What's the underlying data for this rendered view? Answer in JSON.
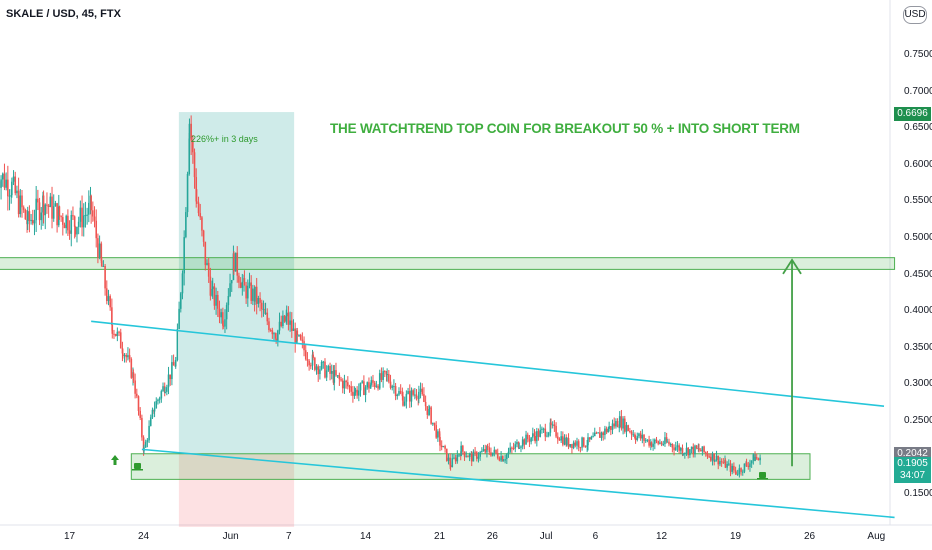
{
  "header": {
    "symbol": "SKALE / USD, 45, FTX",
    "currency_button": "USD"
  },
  "annotations": {
    "headline": "THE WATCHTREND TOP COIN FOR BREAKOUT 50 % + INTO SHORT TERM",
    "gain_note": "226%+ in 3 days"
  },
  "price_badges": [
    {
      "label": "0.6696",
      "value": 0.6696,
      "color": "#1e8f4e"
    },
    {
      "label": "0.2042",
      "value": 0.2042,
      "color": "#787b86"
    },
    {
      "label": "0.1905",
      "value": 0.1905,
      "color": "#22ab94"
    },
    {
      "label": "34:07",
      "value": 0.174,
      "color": "#22ab94"
    }
  ],
  "colors": {
    "up": "#26a69a",
    "down": "#ef5350",
    "zone": "#4caf50",
    "trendline": "#26c6da",
    "arrow": "#43a047",
    "rally_box": "#26a69a",
    "drop_box": "#f23645"
  },
  "icons": [
    "up-arrow-icon",
    "coffee-cup-icon"
  ],
  "chart_data": {
    "type": "candlestick",
    "title": "SKALE / USD, 45, FTX",
    "y_axis": {
      "ticks": [
        "0.7500",
        "0.7000",
        "0.6500",
        "0.6000",
        "0.5500",
        "0.5000",
        "0.4500",
        "0.4000",
        "0.3500",
        "0.3000",
        "0.2500",
        "0.1500"
      ],
      "tick_values": [
        0.75,
        0.7,
        0.65,
        0.6,
        0.55,
        0.5,
        0.45,
        0.4,
        0.35,
        0.3,
        0.25,
        0.15
      ],
      "range": [
        0.105,
        0.8
      ]
    },
    "x_axis": {
      "ticks": [
        "17",
        "24",
        "Jun",
        "7",
        "14",
        "21",
        "26",
        "Jul",
        "6",
        "12",
        "19",
        "26",
        "Aug"
      ],
      "tick_positions_day": [
        17,
        24,
        32,
        38,
        45,
        52,
        57,
        62,
        67,
        73,
        80,
        87,
        93
      ],
      "day_index_note_": null,
      "range_days": [
        10,
        96
      ]
    },
    "price_path": [
      {
        "day": 10.0,
        "price": 0.59
      },
      {
        "day": 11.5,
        "price": 0.57
      },
      {
        "day": 13.0,
        "price": 0.52
      },
      {
        "day": 14.5,
        "price": 0.55
      },
      {
        "day": 16.0,
        "price": 0.53
      },
      {
        "day": 17.5,
        "price": 0.52
      },
      {
        "day": 19.0,
        "price": 0.54
      },
      {
        "day": 20.0,
        "price": 0.46
      },
      {
        "day": 21.0,
        "price": 0.38
      },
      {
        "day": 22.0,
        "price": 0.35
      },
      {
        "day": 23.0,
        "price": 0.31
      },
      {
        "day": 24.0,
        "price": 0.21
      },
      {
        "day": 25.0,
        "price": 0.27
      },
      {
        "day": 26.0,
        "price": 0.3
      },
      {
        "day": 27.0,
        "price": 0.33
      },
      {
        "day": 27.8,
        "price": 0.5
      },
      {
        "day": 28.3,
        "price": 0.66
      },
      {
        "day": 29.0,
        "price": 0.55
      },
      {
        "day": 29.8,
        "price": 0.47
      },
      {
        "day": 30.5,
        "price": 0.42
      },
      {
        "day": 31.5,
        "price": 0.39
      },
      {
        "day": 32.5,
        "price": 0.47
      },
      {
        "day": 33.5,
        "price": 0.43
      },
      {
        "day": 34.5,
        "price": 0.42
      },
      {
        "day": 35.5,
        "price": 0.39
      },
      {
        "day": 36.5,
        "price": 0.37
      },
      {
        "day": 37.5,
        "price": 0.39
      },
      {
        "day": 38.5,
        "price": 0.36
      },
      {
        "day": 40.0,
        "price": 0.33
      },
      {
        "day": 42.0,
        "price": 0.31
      },
      {
        "day": 44.0,
        "price": 0.29
      },
      {
        "day": 45.5,
        "price": 0.3
      },
      {
        "day": 47.0,
        "price": 0.31
      },
      {
        "day": 48.5,
        "price": 0.28
      },
      {
        "day": 50.0,
        "price": 0.29
      },
      {
        "day": 51.0,
        "price": 0.26
      },
      {
        "day": 52.0,
        "price": 0.22
      },
      {
        "day": 53.0,
        "price": 0.19
      },
      {
        "day": 54.0,
        "price": 0.21
      },
      {
        "day": 55.0,
        "price": 0.2
      },
      {
        "day": 56.5,
        "price": 0.21
      },
      {
        "day": 58.0,
        "price": 0.2
      },
      {
        "day": 59.5,
        "price": 0.22
      },
      {
        "day": 61.0,
        "price": 0.23
      },
      {
        "day": 62.5,
        "price": 0.24
      },
      {
        "day": 64.0,
        "price": 0.22
      },
      {
        "day": 66.0,
        "price": 0.22
      },
      {
        "day": 68.0,
        "price": 0.24
      },
      {
        "day": 69.0,
        "price": 0.25
      },
      {
        "day": 70.5,
        "price": 0.23
      },
      {
        "day": 72.0,
        "price": 0.22
      },
      {
        "day": 73.5,
        "price": 0.22
      },
      {
        "day": 75.0,
        "price": 0.21
      },
      {
        "day": 76.5,
        "price": 0.21
      },
      {
        "day": 78.0,
        "price": 0.2
      },
      {
        "day": 79.0,
        "price": 0.19
      },
      {
        "day": 80.0,
        "price": 0.18
      },
      {
        "day": 81.0,
        "price": 0.19
      },
      {
        "day": 81.8,
        "price": 0.2
      },
      {
        "day": 82.3,
        "price": 0.195
      }
    ],
    "upper_zone": {
      "from_day": 10.3,
      "to_day": 95,
      "low": 0.457,
      "high": 0.473
    },
    "lower_zone": {
      "from_day": 22.8,
      "to_day": 87,
      "low": 0.17,
      "high": 0.205
    },
    "trendline_upper": {
      "x1_day": 19.0,
      "y1": 0.386,
      "x2_day": 94.0,
      "y2": 0.27
    },
    "trendline_lower": {
      "x1_day": 23.8,
      "y1": 0.211,
      "x2_day": 95.0,
      "y2": 0.118
    },
    "rally_box": {
      "from_day": 27.3,
      "to_day": 38.2,
      "low": 0.205,
      "high": 0.672
    },
    "drop_box": {
      "from_day": 27.3,
      "to_day": 38.2,
      "low": 0.105,
      "high": 0.205
    },
    "target_arrow": {
      "day": 85.3,
      "from": 0.188,
      "to": 0.47
    },
    "badges_y_scale": "data"
  }
}
